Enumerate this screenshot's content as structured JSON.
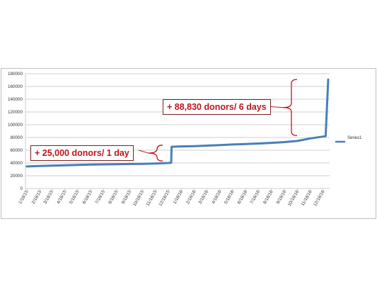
{
  "chart_data": {
    "type": "line",
    "x": [
      "1/18/15",
      "2/18/15",
      "3/18/15",
      "4/18/15",
      "5/18/15",
      "6/18/15",
      "7/18/15",
      "8/18/15",
      "9/18/15",
      "10/18/15",
      "11/18/15",
      "12/18/15",
      "1/18/16",
      "2/18/16",
      "3/18/16",
      "4/18/16",
      "5/18/16",
      "6/18/16",
      "7/18/16",
      "8/18/16",
      "9/18/16",
      "10/18/16",
      "11/18/16",
      "12/18/16"
    ],
    "series": [
      {
        "name": "Series1",
        "color": "#4a7ebb",
        "points": [
          [
            "1/18/15",
            34500
          ],
          [
            "2/18/15",
            35200
          ],
          [
            "3/18/15",
            35900
          ],
          [
            "4/18/15",
            36500
          ],
          [
            "5/18/15",
            37000
          ],
          [
            "6/18/15",
            37400
          ],
          [
            "7/18/15",
            37800
          ],
          [
            "8/18/15",
            38000
          ],
          [
            "9/18/15",
            38400
          ],
          [
            "10/18/15",
            38700
          ],
          [
            "11/18/15",
            39200
          ],
          [
            "12/18/15",
            40000
          ],
          [
            "12/25/15",
            40500
          ],
          [
            "12/26/15",
            65500
          ],
          [
            "1/18/16",
            66000
          ],
          [
            "2/18/16",
            66500
          ],
          [
            "3/18/16",
            67200
          ],
          [
            "4/18/16",
            68000
          ],
          [
            "5/18/16",
            69000
          ],
          [
            "6/18/16",
            69800
          ],
          [
            "7/18/16",
            70600
          ],
          [
            "8/18/16",
            71600
          ],
          [
            "9/18/16",
            72800
          ],
          [
            "10/18/16",
            74500
          ],
          [
            "11/18/16",
            78500
          ],
          [
            "12/18/16",
            81500
          ],
          [
            "12/24/16",
            82000
          ],
          [
            "12/30/16",
            170800
          ]
        ]
      }
    ],
    "y_ticks": [
      "0",
      "20000",
      "40000",
      "60000",
      "80000",
      "100000",
      "120000",
      "140000",
      "160000",
      "180000"
    ],
    "ylim": [
      0,
      180000
    ],
    "grid": "horizontal",
    "legend_position": "right",
    "annotations": [
      {
        "id": "jump1",
        "text": "+ 25,000 donors/ 1 day",
        "bracket_low": 43000,
        "bracket_high": 68000,
        "color": "#c0151b"
      },
      {
        "id": "jump2",
        "text": "+ 88,830 donors/ 6 days",
        "bracket_low": 83000,
        "bracket_high": 171000,
        "color": "#c0151b"
      }
    ]
  }
}
